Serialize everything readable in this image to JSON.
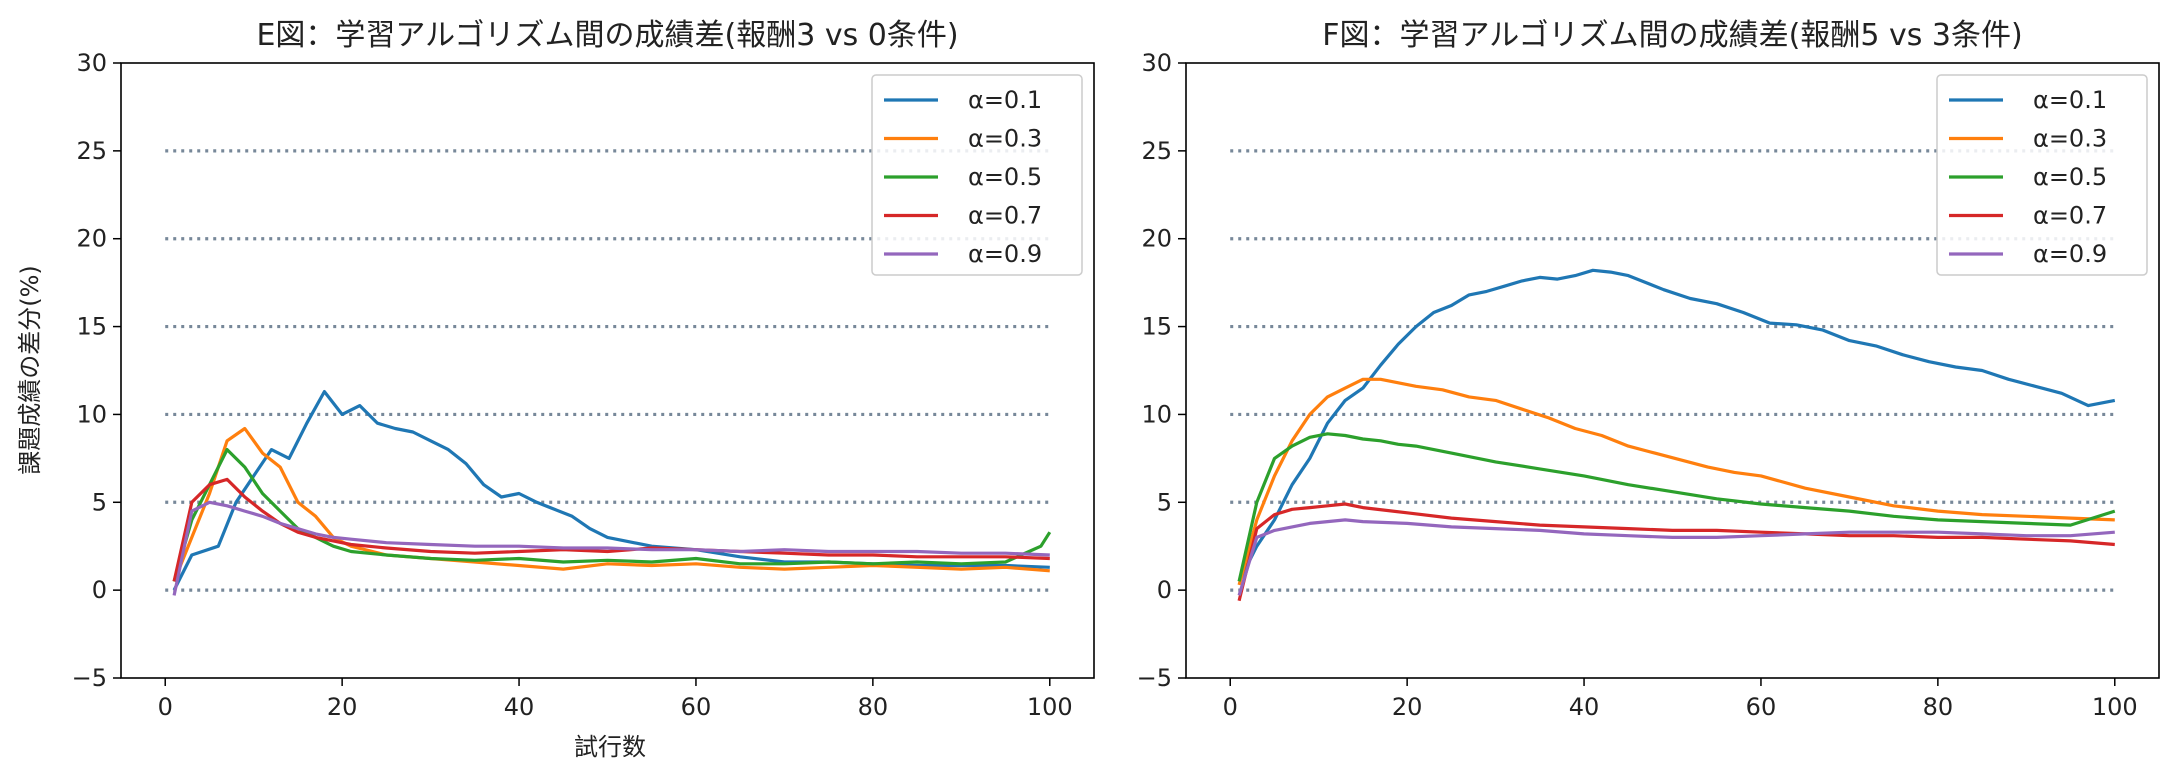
{
  "figure": {
    "ylabel": "課題成績の差分(%)",
    "xlabel": "試行数"
  },
  "chart_data": [
    {
      "type": "line",
      "title": "E図：学習アルゴリズム間の成績差(報酬3 vs 0条件)",
      "xlabel": "試行数",
      "ylabel": "課題成績の差分(%)",
      "xlim": [
        -5,
        105
      ],
      "ylim": [
        -5,
        30
      ],
      "xticks": [
        0,
        20,
        40,
        60,
        80,
        100
      ],
      "yticks": [
        -5,
        0,
        5,
        10,
        15,
        20,
        25,
        30
      ],
      "reference_lines": [
        0,
        5,
        10,
        15,
        20,
        25
      ],
      "legend_position": "top-right",
      "series": [
        {
          "name": "α=0.1",
          "color": "#1f77b4",
          "x": [
            1,
            3,
            6,
            8,
            10,
            12,
            14,
            16,
            18,
            20,
            22,
            24,
            26,
            28,
            30,
            32,
            34,
            36,
            38,
            40,
            42,
            44,
            46,
            48,
            50,
            55,
            60,
            65,
            70,
            75,
            80,
            85,
            90,
            95,
            100
          ],
          "values": [
            0,
            2,
            2.5,
            5,
            6.5,
            8,
            7.5,
            9.5,
            11.3,
            10,
            10.5,
            9.5,
            9.2,
            9,
            8.5,
            8,
            7.2,
            6,
            5.3,
            5.5,
            5,
            4.6,
            4.2,
            3.5,
            3,
            2.5,
            2.3,
            1.9,
            1.6,
            1.6,
            1.5,
            1.4,
            1.4,
            1.4,
            1.3
          ]
        },
        {
          "name": "α=0.3",
          "color": "#ff7f0e",
          "x": [
            1,
            3,
            5,
            7,
            9,
            11,
            13,
            15,
            17,
            19,
            21,
            25,
            30,
            35,
            40,
            45,
            50,
            55,
            60,
            65,
            70,
            75,
            80,
            85,
            90,
            95,
            100
          ],
          "values": [
            0.5,
            3,
            5.5,
            8.5,
            9.2,
            7.8,
            7,
            5,
            4.2,
            3,
            2.5,
            2,
            1.8,
            1.6,
            1.4,
            1.2,
            1.5,
            1.4,
            1.5,
            1.3,
            1.2,
            1.3,
            1.4,
            1.3,
            1.2,
            1.3,
            1.1
          ]
        },
        {
          "name": "α=0.5",
          "color": "#2ca02c",
          "x": [
            1,
            3,
            5,
            7,
            9,
            11,
            13,
            15,
            17,
            19,
            21,
            25,
            30,
            35,
            40,
            45,
            50,
            55,
            60,
            65,
            70,
            75,
            80,
            85,
            90,
            95,
            99,
            100
          ],
          "values": [
            0.5,
            4,
            6,
            8,
            7,
            5.5,
            4.5,
            3.5,
            3,
            2.5,
            2.2,
            2,
            1.8,
            1.7,
            1.8,
            1.6,
            1.7,
            1.6,
            1.8,
            1.5,
            1.5,
            1.6,
            1.5,
            1.6,
            1.5,
            1.6,
            2.5,
            3.3
          ]
        },
        {
          "name": "α=0.7",
          "color": "#d62728",
          "x": [
            1,
            3,
            5,
            7,
            9,
            11,
            13,
            15,
            17,
            19,
            21,
            25,
            30,
            35,
            40,
            45,
            50,
            55,
            60,
            65,
            70,
            75,
            80,
            85,
            90,
            95,
            100
          ],
          "values": [
            0.5,
            5,
            6,
            6.3,
            5.3,
            4.5,
            3.8,
            3.3,
            3,
            2.8,
            2.6,
            2.4,
            2.2,
            2.1,
            2.2,
            2.3,
            2.2,
            2.4,
            2.3,
            2.2,
            2.1,
            2,
            2,
            1.9,
            1.9,
            1.9,
            1.8
          ]
        },
        {
          "name": "α=0.9",
          "color": "#9467bd",
          "x": [
            1,
            3,
            5,
            7,
            9,
            11,
            13,
            15,
            17,
            19,
            21,
            25,
            30,
            35,
            40,
            45,
            50,
            55,
            60,
            65,
            70,
            75,
            80,
            85,
            90,
            95,
            100
          ],
          "values": [
            -0.3,
            4.5,
            5,
            4.8,
            4.5,
            4.2,
            3.8,
            3.5,
            3.2,
            3,
            2.9,
            2.7,
            2.6,
            2.5,
            2.5,
            2.4,
            2.4,
            2.3,
            2.3,
            2.2,
            2.3,
            2.2,
            2.2,
            2.2,
            2.1,
            2.1,
            2
          ]
        }
      ]
    },
    {
      "type": "line",
      "title": "F図：学習アルゴリズム間の成績差(報酬5 vs 3条件)",
      "xlim": [
        -5,
        105
      ],
      "ylim": [
        -5,
        30
      ],
      "xticks": [
        0,
        20,
        40,
        60,
        80,
        100
      ],
      "yticks": [
        -5,
        0,
        5,
        10,
        15,
        20,
        25,
        30
      ],
      "reference_lines": [
        0,
        5,
        10,
        15,
        20,
        25
      ],
      "legend_position": "top-right",
      "series": [
        {
          "name": "α=0.1",
          "color": "#1f77b4",
          "x": [
            1,
            3,
            5,
            7,
            9,
            11,
            13,
            15,
            17,
            19,
            21,
            23,
            25,
            27,
            29,
            31,
            33,
            35,
            37,
            39,
            41,
            43,
            45,
            47,
            49,
            52,
            55,
            58,
            61,
            64,
            67,
            70,
            73,
            76,
            79,
            82,
            85,
            88,
            91,
            94,
            97,
            100
          ],
          "values": [
            0.5,
            2.5,
            4,
            6,
            7.5,
            9.5,
            10.8,
            11.5,
            12.8,
            14,
            15,
            15.8,
            16.2,
            16.8,
            17,
            17.3,
            17.6,
            17.8,
            17.7,
            17.9,
            18.2,
            18.1,
            17.9,
            17.5,
            17.1,
            16.6,
            16.3,
            15.8,
            15.2,
            15.1,
            14.8,
            14.2,
            13.9,
            13.4,
            13,
            12.7,
            12.5,
            12,
            11.6,
            11.2,
            10.5,
            10.8
          ]
        },
        {
          "name": "α=0.3",
          "color": "#ff7f0e",
          "x": [
            1,
            3,
            5,
            7,
            9,
            11,
            13,
            15,
            17,
            19,
            21,
            24,
            27,
            30,
            33,
            36,
            39,
            42,
            45,
            48,
            51,
            54,
            57,
            60,
            65,
            70,
            75,
            80,
            85,
            90,
            95,
            100
          ],
          "values": [
            0.3,
            4,
            6.5,
            8.5,
            10,
            11,
            11.5,
            12,
            12,
            11.8,
            11.6,
            11.4,
            11,
            10.8,
            10.3,
            9.8,
            9.2,
            8.8,
            8.2,
            7.8,
            7.4,
            7,
            6.7,
            6.5,
            5.8,
            5.3,
            4.8,
            4.5,
            4.3,
            4.2,
            4.1,
            4
          ]
        },
        {
          "name": "α=0.5",
          "color": "#2ca02c",
          "x": [
            1,
            3,
            5,
            7,
            9,
            11,
            13,
            15,
            17,
            19,
            21,
            25,
            30,
            35,
            40,
            45,
            50,
            55,
            60,
            65,
            70,
            75,
            80,
            85,
            90,
            95,
            100
          ],
          "values": [
            0.5,
            5,
            7.5,
            8.2,
            8.7,
            8.9,
            8.8,
            8.6,
            8.5,
            8.3,
            8.2,
            7.8,
            7.3,
            6.9,
            6.5,
            6,
            5.6,
            5.2,
            4.9,
            4.7,
            4.5,
            4.2,
            4,
            3.9,
            3.8,
            3.7,
            4.5
          ]
        },
        {
          "name": "α=0.7",
          "color": "#d62728",
          "x": [
            1,
            3,
            5,
            7,
            9,
            11,
            13,
            15,
            20,
            25,
            30,
            35,
            40,
            45,
            50,
            55,
            60,
            65,
            70,
            75,
            80,
            85,
            90,
            95,
            100
          ],
          "values": [
            -0.6,
            3.5,
            4.3,
            4.6,
            4.7,
            4.8,
            4.9,
            4.7,
            4.4,
            4.1,
            3.9,
            3.7,
            3.6,
            3.5,
            3.4,
            3.4,
            3.3,
            3.2,
            3.1,
            3.1,
            3,
            3,
            2.9,
            2.8,
            2.6
          ]
        },
        {
          "name": "α=0.9",
          "color": "#9467bd",
          "x": [
            1,
            3,
            5,
            7,
            9,
            11,
            13,
            15,
            20,
            25,
            30,
            35,
            40,
            45,
            50,
            55,
            60,
            65,
            70,
            75,
            80,
            85,
            90,
            95,
            100
          ],
          "values": [
            -0.3,
            3,
            3.4,
            3.6,
            3.8,
            3.9,
            4,
            3.9,
            3.8,
            3.6,
            3.5,
            3.4,
            3.2,
            3.1,
            3,
            3,
            3.1,
            3.2,
            3.3,
            3.3,
            3.3,
            3.2,
            3.1,
            3.1,
            3.3
          ]
        }
      ]
    }
  ]
}
